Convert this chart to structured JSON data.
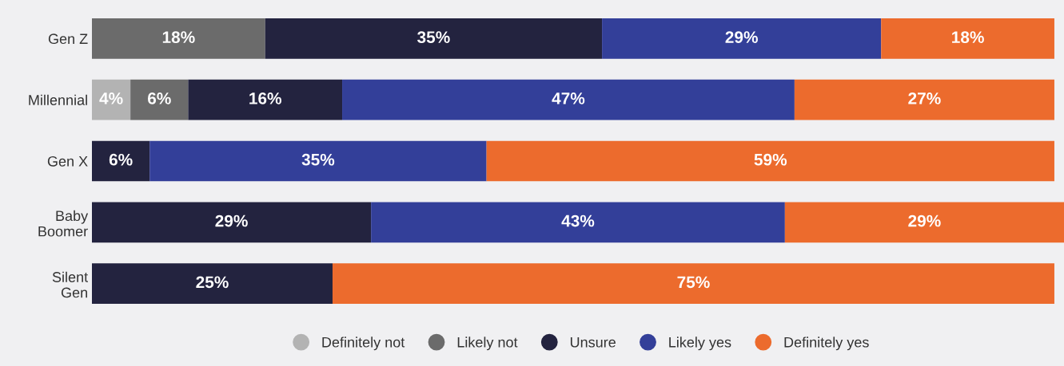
{
  "chart_data": {
    "type": "bar",
    "orientation": "horizontal",
    "stacked": true,
    "categories": [
      "Gen Z",
      "Millennial",
      "Gen X",
      "Baby\nBoomer",
      "Silent\nGen"
    ],
    "series": [
      {
        "name": "Definitely not",
        "color": "#b3b3b3",
        "values": [
          null,
          4,
          null,
          null,
          null
        ],
        "value_labels": [
          null,
          "4%",
          null,
          null,
          null
        ]
      },
      {
        "name": "Likely not",
        "color": "#6b6b6b",
        "values": [
          18,
          6,
          null,
          null,
          null
        ],
        "value_labels": [
          "18%",
          "6%",
          null,
          null,
          null
        ]
      },
      {
        "name": "Unsure",
        "color": "#23233f",
        "values": [
          35,
          16,
          6,
          29,
          25
        ],
        "value_labels": [
          "35%",
          "16%",
          "6%",
          "29%",
          "25%"
        ]
      },
      {
        "name": "Likely yes",
        "color": "#333f99",
        "values": [
          29,
          47,
          35,
          43,
          null
        ],
        "value_labels": [
          "29%",
          "47%",
          "35%",
          "43%",
          null
        ]
      },
      {
        "name": "Definitely yes",
        "color": "#ec6b2d",
        "values": [
          18,
          27,
          59,
          29,
          75
        ],
        "value_labels": [
          "18%",
          "27%",
          "59%",
          "29%",
          "75%"
        ]
      }
    ],
    "tick_labels": "y",
    "grid": false,
    "legend": "bottom"
  }
}
